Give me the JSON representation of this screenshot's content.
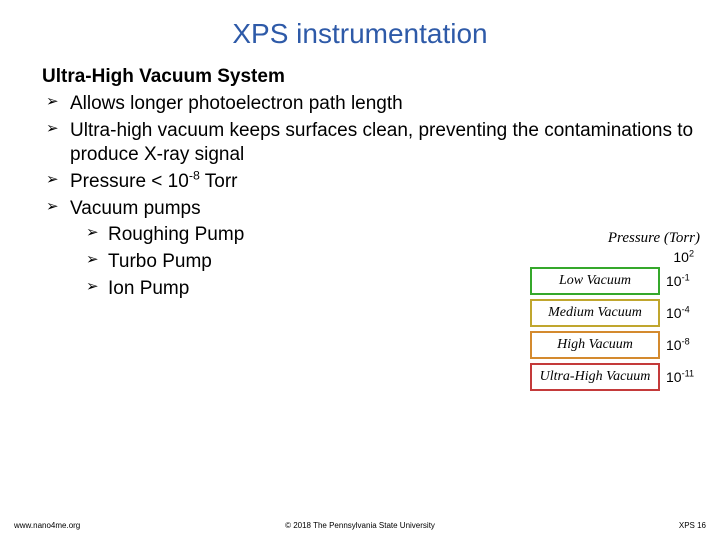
{
  "title": "XPS instrumentation",
  "section_heading": "Ultra-High Vacuum System",
  "bullets": {
    "b1": "Allows longer photoelectron path length",
    "b2": "Ultra-high vacuum keeps surfaces clean, preventing the contaminations to produce X-ray signal",
    "b3_pre": "Pressure < 10",
    "b3_exp": "-8",
    "b3_post": " Torr",
    "b4": "Vacuum pumps",
    "b4_1": "Roughing Pump",
    "b4_2": "Turbo Pump",
    "b4_3": "Ion Pump"
  },
  "pressure_panel": {
    "header": "Pressure (Torr)",
    "top_base": "10",
    "top_exp": "2",
    "rows": [
      {
        "label": "Low Vacuum",
        "box_class": "vac-low",
        "val_base": "10",
        "val_exp": "-1"
      },
      {
        "label": "Medium Vacuum",
        "box_class": "vac-med",
        "val_base": "10",
        "val_exp": "-4"
      },
      {
        "label": "High Vacuum",
        "box_class": "vac-high",
        "val_base": "10",
        "val_exp": "-8"
      },
      {
        "label": "Ultra-High Vacuum",
        "box_class": "vac-ultra",
        "val_base": "10",
        "val_exp": "-11"
      }
    ]
  },
  "footer": {
    "left": "www.nano4me.org",
    "center": "© 2018 The Pennsylvania State University",
    "right": "XPS 16"
  },
  "colors": {
    "title": "#2e5aa8",
    "low": "#35a82b",
    "medium": "#c0a62e",
    "high": "#d48a2e",
    "ultra": "#c43a3a",
    "background": "#ffffff"
  }
}
